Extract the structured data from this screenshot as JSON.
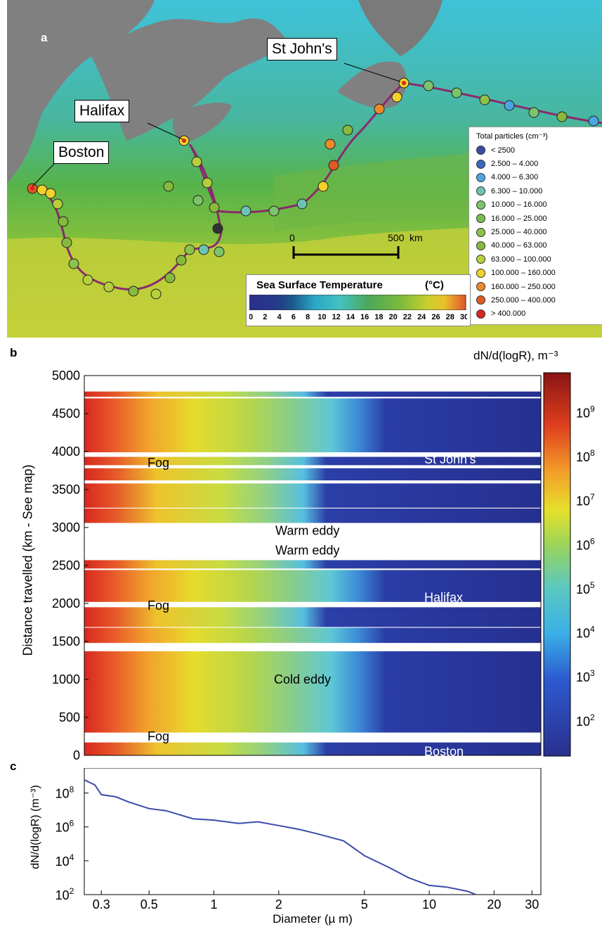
{
  "panel_a": {
    "label": "a",
    "cities": [
      {
        "name": "St John's"
      },
      {
        "name": "Halifax"
      },
      {
        "name": "Boston"
      }
    ],
    "scale_bar": {
      "start": "0",
      "end": "500",
      "unit": "km"
    },
    "particle_legend": {
      "title": "Total particles (cm⁻³)",
      "entries": [
        {
          "label": "< 2500",
          "color": "#3b4aa8"
        },
        {
          "label": "2.500 – 4.000",
          "color": "#3c66c2"
        },
        {
          "label": "4.000 – 6.300",
          "color": "#4aa6e0"
        },
        {
          "label": "6.300 – 10.000",
          "color": "#6cc3b4"
        },
        {
          "label": "10.000 – 16.000",
          "color": "#7cc46a"
        },
        {
          "label": "16.000 – 25.000",
          "color": "#79be52"
        },
        {
          "label": "25.000 – 40.000",
          "color": "#8bc24a"
        },
        {
          "label": "40.000 – 63.000",
          "color": "#86b93c"
        },
        {
          "label": "63.000 – 100.000",
          "color": "#b6cf3a"
        },
        {
          "label": "100.000 – 160.000",
          "color": "#f2d22a"
        },
        {
          "label": "160.000 – 250.000",
          "color": "#ea8b2a"
        },
        {
          "label": "250.000 – 400.000",
          "color": "#e05a24"
        },
        {
          "label": "> 400.000",
          "color": "#d8261e"
        }
      ]
    },
    "sst_bar": {
      "title": "Sea Surface Temperature",
      "unit": "(°C)",
      "ticks": [
        "0",
        "2",
        "4",
        "6",
        "8",
        "10",
        "12",
        "14",
        "16",
        "18",
        "20",
        "22",
        "24",
        "26",
        "28",
        "30"
      ]
    }
  },
  "panel_b": {
    "label": "b",
    "ylabel": "Distance travelled (km - See map)",
    "yticks": [
      "0",
      "500",
      "1000",
      "1500",
      "2000",
      "2500",
      "3000",
      "3500",
      "4000",
      "4500",
      "5000"
    ],
    "ylim": [
      0,
      5000
    ],
    "colorbar": {
      "title": "dN/d(logR), m⁻³",
      "ticks": [
        {
          "base": "10",
          "exp": "2",
          "value": 100
        },
        {
          "base": "10",
          "exp": "3",
          "value": 1000
        },
        {
          "base": "10",
          "exp": "4",
          "value": 10000
        },
        {
          "base": "10",
          "exp": "5",
          "value": 100000
        },
        {
          "base": "10",
          "exp": "6",
          "value": 1000000
        },
        {
          "base": "10",
          "exp": "7",
          "value": 10000000
        },
        {
          "base": "10",
          "exp": "8",
          "value": 100000000
        },
        {
          "base": "10",
          "exp": "9",
          "value": 1000000000
        }
      ]
    },
    "annotations": [
      {
        "text": "St John's",
        "y_km": 3900,
        "color": "#ffffff"
      },
      {
        "text": "Fog",
        "y_km": 3850,
        "color": "#000000"
      },
      {
        "text": "Warm eddy",
        "y_km": 2960,
        "color": "#000000"
      },
      {
        "text": "Warm eddy",
        "y_km": 2700,
        "color": "#000000"
      },
      {
        "text": "Halifax",
        "y_km": 2080,
        "color": "#ffffff"
      },
      {
        "text": "Fog",
        "y_km": 1970,
        "color": "#000000"
      },
      {
        "text": "Cold eddy",
        "y_km": 1000,
        "color": "#000000"
      },
      {
        "text": "Fog",
        "y_km": 250,
        "color": "#000000"
      },
      {
        "text": "Boston",
        "y_km": 50,
        "color": "#ffffff"
      }
    ]
  },
  "panel_c": {
    "label": "c",
    "ylabel": "dN/d(logR) (m⁻³)",
    "xlabel": "Diameter (µ m)",
    "xticks": [
      {
        "label": "0.3",
        "value": 0.3
      },
      {
        "label": "0.5",
        "value": 0.5
      },
      {
        "label": "1",
        "value": 1
      },
      {
        "label": "2",
        "value": 2
      },
      {
        "label": "5",
        "value": 5
      },
      {
        "label": "10",
        "value": 10
      },
      {
        "label": "20",
        "value": 20
      },
      {
        "label": "30",
        "value": 30
      }
    ],
    "yticks": [
      {
        "base": "10",
        "exp": "2",
        "value": 100
      },
      {
        "base": "10",
        "exp": "4",
        "value": 10000
      },
      {
        "base": "10",
        "exp": "6",
        "value": 1000000
      },
      {
        "base": "10",
        "exp": "8",
        "value": 100000000
      }
    ]
  },
  "chart_data": [
    {
      "type": "line",
      "xscale": "log",
      "yscale": "log",
      "xlim": [
        0.25,
        33
      ],
      "ylim": [
        100,
        3000000000
      ],
      "xlabel": "Diameter (µ m)",
      "ylabel": "dN/d(logR) (m⁻³)",
      "series": [
        {
          "color": "#3b4cab",
          "x": [
            0.25,
            0.28,
            0.3,
            0.35,
            0.4,
            0.5,
            0.6,
            0.8,
            1.0,
            1.3,
            1.6,
            2.0,
            2.5,
            3.0,
            4.0,
            5.0,
            6.5,
            8.0,
            10.0,
            12.0,
            15.0,
            16.5
          ],
          "y": [
            600000000,
            300000000,
            80000000,
            60000000,
            30000000,
            12000000,
            9000000,
            3000000,
            2500000,
            1600000,
            2000000,
            1200000,
            700000,
            400000,
            150000,
            20000,
            4000,
            1000,
            350,
            280,
            160,
            100
          ]
        }
      ]
    },
    {
      "type": "heatmap",
      "xscale": "log",
      "xlim": [
        0.25,
        33
      ],
      "ylim": [
        0,
        5000
      ],
      "ylabel": "Distance travelled (km - See map)",
      "colorbar_label": "dN/d(logR), m⁻³",
      "colorbar_range": [
        10,
        10000000000
      ]
    }
  ]
}
